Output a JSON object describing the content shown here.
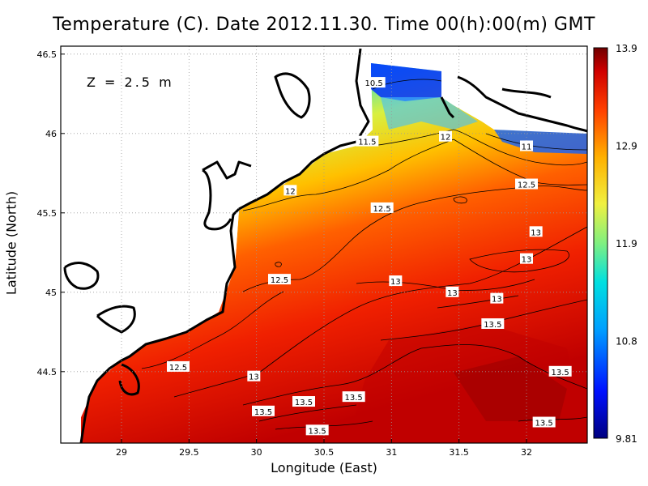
{
  "title": "Temperature (C). Date 2012.11.30. Time 00(h):00(m) GMT",
  "depth_label": "Z = 2.5 m",
  "xlabel": "Longitude (East)",
  "ylabel": "Latitude (North)",
  "colors": {
    "land": "#ffffff",
    "coast": "#000000",
    "grid": "#9a9a9a",
    "scale": [
      "#000080",
      "#0010ff",
      "#00a0ff",
      "#00e0e0",
      "#80f080",
      "#f0f040",
      "#ffb000",
      "#ff4000",
      "#d00000",
      "#700000"
    ]
  },
  "chart_data": {
    "type": "heatmap",
    "title": "Temperature (C). Date 2012.11.30. Time 00(h):00(m) GMT",
    "xlabel": "Longitude (East)",
    "ylabel": "Latitude (North)",
    "xlim": [
      28.55,
      32.45
    ],
    "ylim": [
      44.05,
      46.55
    ],
    "xticks": [
      "29",
      "29.5",
      "30",
      "30.5",
      "31",
      "31.5",
      "32"
    ],
    "yticks": [
      "44.5",
      "45",
      "45.5",
      "46",
      "46.5"
    ],
    "grid": true,
    "colorbar": {
      "min": 9.81,
      "max": 13.9,
      "tick_labels": [
        "13.9",
        "12.9",
        "11.9",
        "10.8",
        "9.81"
      ]
    },
    "contour_labels": [
      {
        "text": "10.5",
        "lon": 30.87,
        "lat": 46.32
      },
      {
        "text": "11",
        "lon": 32.0,
        "lat": 45.92
      },
      {
        "text": "11.5",
        "lon": 30.82,
        "lat": 45.95
      },
      {
        "text": "12",
        "lon": 31.4,
        "lat": 45.98
      },
      {
        "text": "12",
        "lon": 30.25,
        "lat": 45.64
      },
      {
        "text": "12.5",
        "lon": 32.0,
        "lat": 45.68
      },
      {
        "text": "12.5",
        "lon": 30.93,
        "lat": 45.53
      },
      {
        "text": "12.5",
        "lon": 30.17,
        "lat": 45.08
      },
      {
        "text": "12.5",
        "lon": 29.42,
        "lat": 44.53
      },
      {
        "text": "13",
        "lon": 32.07,
        "lat": 45.38
      },
      {
        "text": "13",
        "lon": 32.0,
        "lat": 45.21
      },
      {
        "text": "13",
        "lon": 31.03,
        "lat": 45.07
      },
      {
        "text": "13",
        "lon": 31.45,
        "lat": 45.0
      },
      {
        "text": "13",
        "lon": 31.78,
        "lat": 44.96
      },
      {
        "text": "13",
        "lon": 29.98,
        "lat": 44.47
      },
      {
        "text": "13.5",
        "lon": 31.75,
        "lat": 44.8
      },
      {
        "text": "13.5",
        "lon": 32.25,
        "lat": 44.5
      },
      {
        "text": "13.5",
        "lon": 30.35,
        "lat": 44.31
      },
      {
        "text": "13.5",
        "lon": 30.72,
        "lat": 44.34
      },
      {
        "text": "13.5",
        "lon": 30.05,
        "lat": 44.25
      },
      {
        "text": "13.5",
        "lon": 30.45,
        "lat": 44.13
      },
      {
        "text": "13.5",
        "lon": 32.13,
        "lat": 44.18
      }
    ]
  }
}
